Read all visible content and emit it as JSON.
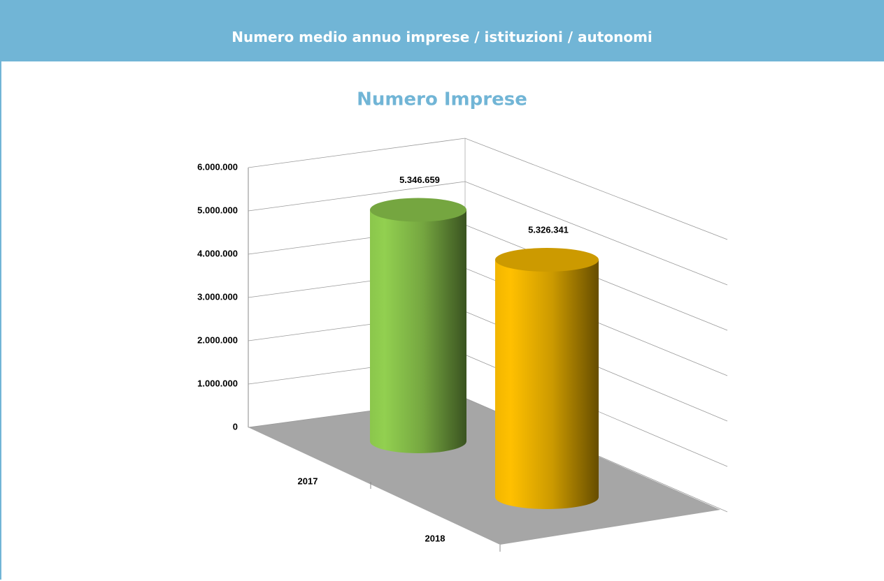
{
  "header": {
    "title": "Numero medio annuo imprese / istituzioni / autonomi"
  },
  "chart_data": {
    "type": "cylinder",
    "title": "Numero Imprese",
    "categories": [
      "2017",
      "2018"
    ],
    "values": [
      5346659,
      5326341
    ],
    "value_labels": [
      "5.346.659",
      "5.326.341"
    ],
    "colors": [
      "#92d050",
      "#ffc000"
    ],
    "ylim": [
      0,
      6000000
    ],
    "yticks": [
      0,
      {
        "value": 1000000,
        "label": "1.000.000"
      },
      {
        "value": 2000000,
        "label": "2.000.000"
      },
      {
        "value": 3000000,
        "label": "3.000.000"
      },
      {
        "value": 4000000,
        "label": "4.000.000"
      },
      {
        "value": 5000000,
        "label": "5.000.000"
      },
      {
        "value": 6000000,
        "label": "6.000.000"
      }
    ],
    "grid": true
  }
}
